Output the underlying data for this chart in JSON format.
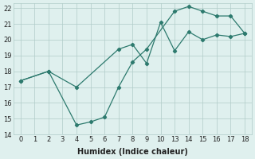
{
  "xlabel": "Humidex (Indice chaleur)",
  "xtick_labels": [
    "0",
    "1",
    "2",
    "3",
    "4",
    "5",
    "6",
    "7",
    "8",
    "9",
    "10",
    "13",
    "14",
    "15",
    "16",
    "17",
    "18"
  ],
  "ytick_labels": [
    "14",
    "15",
    "16",
    "17",
    "18",
    "19",
    "20",
    "21",
    "22"
  ],
  "line1_xi": [
    0,
    2,
    4,
    5,
    6,
    7,
    8,
    9,
    12,
    13,
    14,
    15,
    16,
    16
  ],
  "line1_y": [
    17.4,
    18.0,
    14.6,
    14.8,
    15.1,
    17.0,
    18.6,
    19.4,
    21.8,
    22.1,
    21.8,
    21.5,
    21.5,
    20.4
  ],
  "line2_xi": [
    0,
    2,
    4,
    7,
    8,
    9,
    10,
    12,
    13,
    14,
    15,
    16,
    16
  ],
  "line2_y": [
    17.4,
    18.0,
    17.0,
    19.4,
    19.7,
    18.5,
    21.1,
    19.3,
    20.5,
    20.0,
    20.3,
    20.2,
    20.4
  ],
  "line_color": "#2d7a6e",
  "bg_color": "#dff0ee",
  "grid_color": "#b0ccc8",
  "ylim": [
    14,
    22
  ]
}
